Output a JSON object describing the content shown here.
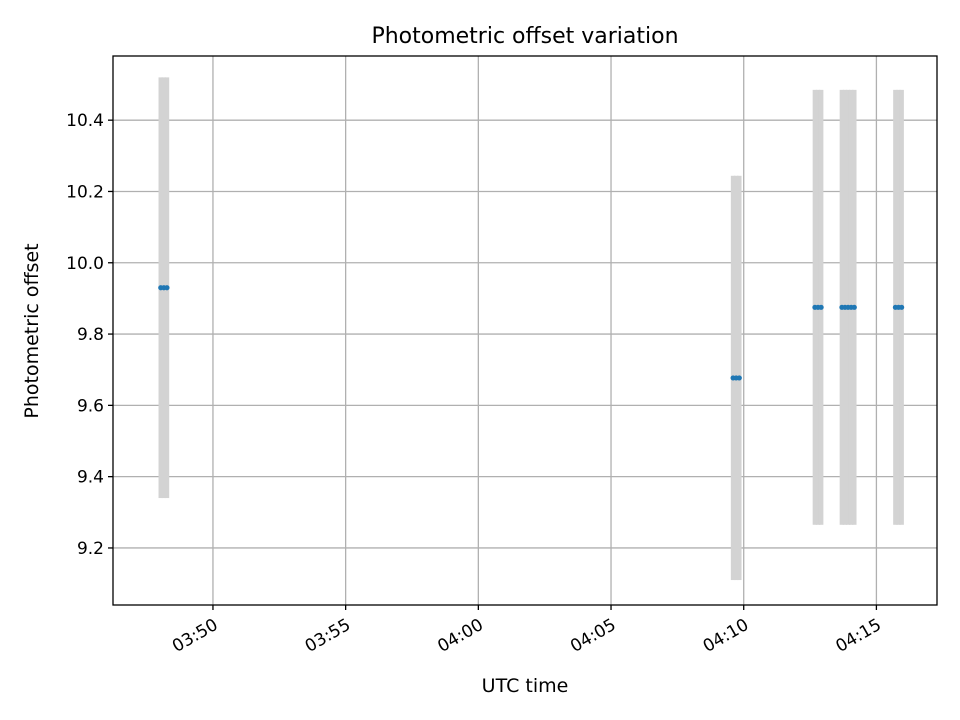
{
  "chart_data": {
    "type": "scatter",
    "title": "Photometric offset variation",
    "xlabel": "UTC time",
    "ylabel": "Photometric offset",
    "x_axis_type": "time",
    "xlim": [
      "03:46:14",
      "04:17:17"
    ],
    "ylim": [
      9.04,
      10.58
    ],
    "x_ticks": [
      "03:50",
      "03:55",
      "04:00",
      "04:05",
      "04:10",
      "04:15"
    ],
    "y_ticks": [
      9.2,
      9.4,
      9.6,
      9.8,
      10.0,
      10.2,
      10.4
    ],
    "y_tick_labels": [
      "9.2",
      "9.4",
      "9.6",
      "9.8",
      "10.0",
      "10.2",
      "10.4"
    ],
    "grid": true,
    "colors": {
      "points": "#1f77b4",
      "error_bars": "#d3d3d3"
    },
    "points": [
      {
        "x": "03:48:02",
        "y": 9.93,
        "yerr": 0.59
      },
      {
        "x": "03:48:09",
        "y": 9.93,
        "yerr": 0.59
      },
      {
        "x": "03:48:16",
        "y": 9.93,
        "yerr": 0.59
      },
      {
        "x": "04:09:36",
        "y": 9.677,
        "yerr": 0.567
      },
      {
        "x": "04:09:43",
        "y": 9.677,
        "yerr": 0.567
      },
      {
        "x": "04:09:50",
        "y": 9.677,
        "yerr": 0.567
      },
      {
        "x": "04:12:41",
        "y": 9.875,
        "yerr": 0.61
      },
      {
        "x": "04:12:48",
        "y": 9.875,
        "yerr": 0.61
      },
      {
        "x": "04:12:55",
        "y": 9.875,
        "yerr": 0.61
      },
      {
        "x": "04:13:42",
        "y": 9.875,
        "yerr": 0.61
      },
      {
        "x": "04:13:49",
        "y": 9.875,
        "yerr": 0.61
      },
      {
        "x": "04:13:56",
        "y": 9.875,
        "yerr": 0.61
      },
      {
        "x": "04:14:03",
        "y": 9.875,
        "yerr": 0.61
      },
      {
        "x": "04:14:10",
        "y": 9.875,
        "yerr": 0.61
      },
      {
        "x": "04:15:43",
        "y": 9.875,
        "yerr": 0.61
      },
      {
        "x": "04:15:50",
        "y": 9.875,
        "yerr": 0.61
      },
      {
        "x": "04:15:57",
        "y": 9.875,
        "yerr": 0.61
      }
    ]
  }
}
